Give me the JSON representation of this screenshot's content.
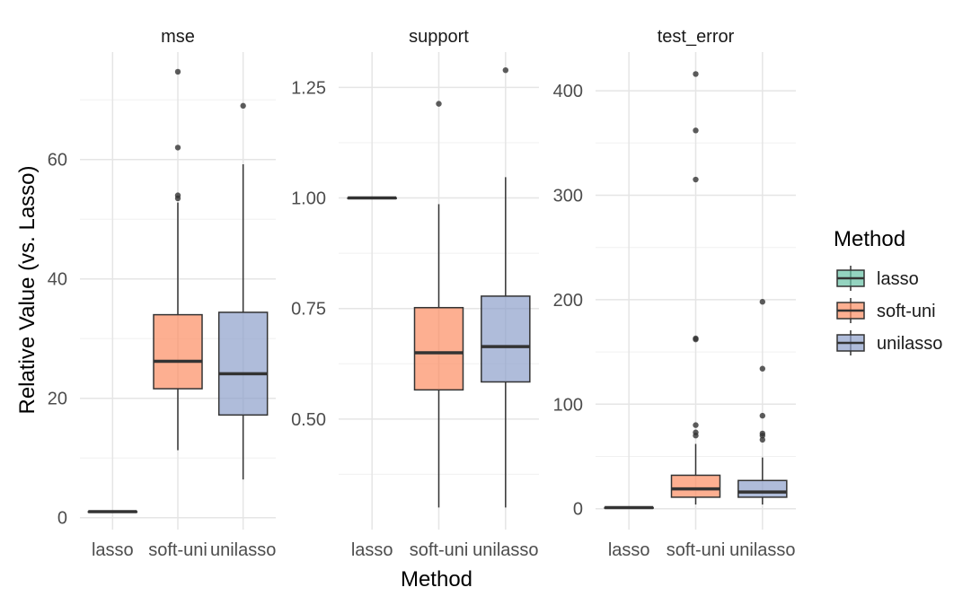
{
  "chart_data": {
    "type": "boxplot",
    "xlabel": "Method",
    "ylabel": "Relative Value (vs. Lasso)",
    "categories": [
      "lasso",
      "soft-uni",
      "unilasso"
    ],
    "colors": {
      "lasso": "#66c2a5",
      "soft-uni": "#fc8d62",
      "unilasso": "#8da0cb"
    },
    "legend": {
      "title": "Method",
      "position": "right",
      "entries": [
        "lasso",
        "soft-uni",
        "unilasso"
      ]
    },
    "grid": true,
    "facets": [
      {
        "title": "mse",
        "ylim": [
          -2,
          78
        ],
        "yticks": [
          0,
          20,
          40,
          60
        ],
        "yticklabels": [
          "0",
          "20",
          "40",
          "60"
        ],
        "boxes": [
          {
            "method": "lasso",
            "min": 1,
            "q1": 1,
            "median": 1,
            "q3": 1,
            "max": 1,
            "outliers": []
          },
          {
            "method": "soft-uni",
            "min": 11.3,
            "q1": 21.6,
            "median": 26.2,
            "q3": 34.0,
            "max": 52.8,
            "outliers": [
              53.5,
              54.0,
              62.0,
              74.7
            ]
          },
          {
            "method": "unilasso",
            "min": 6.4,
            "q1": 17.2,
            "median": 24.1,
            "q3": 34.4,
            "max": 59.2,
            "outliers": [
              69.0
            ]
          }
        ]
      },
      {
        "title": "support",
        "ylim": [
          0.25,
          1.33
        ],
        "yticks": [
          0.5,
          0.75,
          1.0,
          1.25
        ],
        "yticklabels": [
          "0.50",
          "0.75",
          "1.00",
          "1.25"
        ],
        "boxes": [
          {
            "method": "lasso",
            "min": 1.0,
            "q1": 1.0,
            "median": 1.0,
            "q3": 1.0,
            "max": 1.0,
            "outliers": []
          },
          {
            "method": "soft-uni",
            "min": 0.3,
            "q1": 0.566,
            "median": 0.65,
            "q3": 0.752,
            "max": 0.986,
            "outliers": [
              1.213
            ]
          },
          {
            "method": "unilasso",
            "min": 0.3,
            "q1": 0.584,
            "median": 0.664,
            "q3": 0.778,
            "max": 1.047,
            "outliers": [
              1.289
            ]
          }
        ]
      },
      {
        "title": "test_error",
        "ylim": [
          -20,
          437
        ],
        "yticks": [
          0,
          100,
          200,
          300,
          400
        ],
        "yticklabels": [
          "0",
          "100",
          "200",
          "300",
          "400"
        ],
        "boxes": [
          {
            "method": "lasso",
            "min": 1,
            "q1": 1,
            "median": 1,
            "q3": 1,
            "max": 1,
            "outliers": []
          },
          {
            "method": "soft-uni",
            "min": 4,
            "q1": 11,
            "median": 19,
            "q3": 32,
            "max": 62,
            "outliers": [
              70,
              73,
              80,
              162,
              163,
              315,
              362,
              416
            ]
          },
          {
            "method": "unilasso",
            "min": 4,
            "q1": 11,
            "median": 16,
            "q3": 27,
            "max": 49,
            "outliers": [
              66,
              70,
              72,
              89,
              134,
              198
            ]
          }
        ]
      }
    ]
  }
}
